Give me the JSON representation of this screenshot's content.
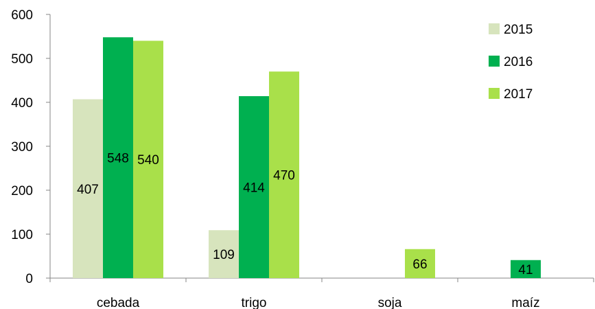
{
  "chart_data": {
    "type": "bar",
    "categories": [
      "cebada",
      "trigo",
      "soja",
      "maíz"
    ],
    "series": [
      {
        "name": "2015",
        "color": "#d7e4bd",
        "values": [
          407,
          109,
          null,
          null
        ]
      },
      {
        "name": "2016",
        "color": "#00b050",
        "values": [
          548,
          414,
          null,
          41
        ]
      },
      {
        "name": "2017",
        "color": "#a9e04a",
        "values": [
          540,
          470,
          66,
          null
        ]
      }
    ],
    "ylim": [
      0,
      600
    ],
    "yticks": [
      0,
      100,
      200,
      300,
      400,
      500,
      600
    ],
    "title": "",
    "xlabel": "",
    "ylabel": "",
    "legend_position": "top-right",
    "grid": false
  }
}
